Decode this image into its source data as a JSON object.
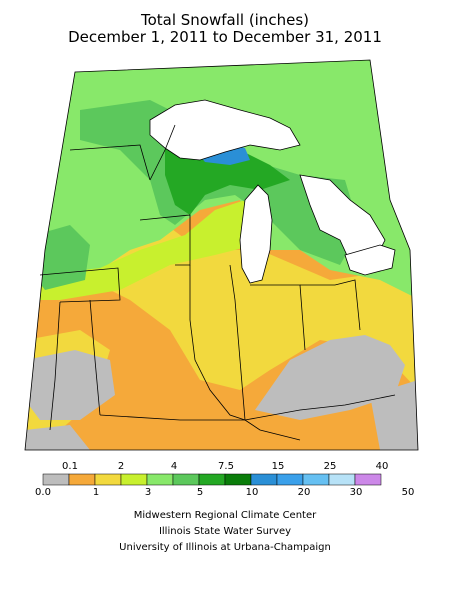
{
  "title": {
    "line1": "Total Snowfall (inches)",
    "line2": "December 1, 2011 to December 31, 2011"
  },
  "legend": {
    "upper_labels": [
      "0.1",
      "2",
      "4",
      "7.5",
      "15",
      "25",
      "40"
    ],
    "lower_labels": [
      "0.0",
      "1",
      "3",
      "5",
      "10",
      "20",
      "30",
      "50"
    ],
    "colors": [
      "#bdbdbd",
      "#f5a93a",
      "#f2d93e",
      "#c8f02e",
      "#88e86a",
      "#5cc85c",
      "#24a824",
      "#0a7d0a",
      "#2a8fd6",
      "#3aa0ea",
      "#66c0f2",
      "#b7e2f7",
      "#cc88e8"
    ]
  },
  "palette": {
    "gray": "#bdbdbd",
    "orange": "#f5a93a",
    "yellow": "#f2d93e",
    "lime": "#c8f02e",
    "lightgreen": "#88e86a",
    "green": "#5cc85c",
    "darkgreen": "#24a824",
    "blue": "#2a8fd6"
  },
  "credits": {
    "line1": "Midwestern Regional Climate Center",
    "line2": "Illinois State Water Survey",
    "line3": "University of Illinois at Urbana-Champaign"
  }
}
